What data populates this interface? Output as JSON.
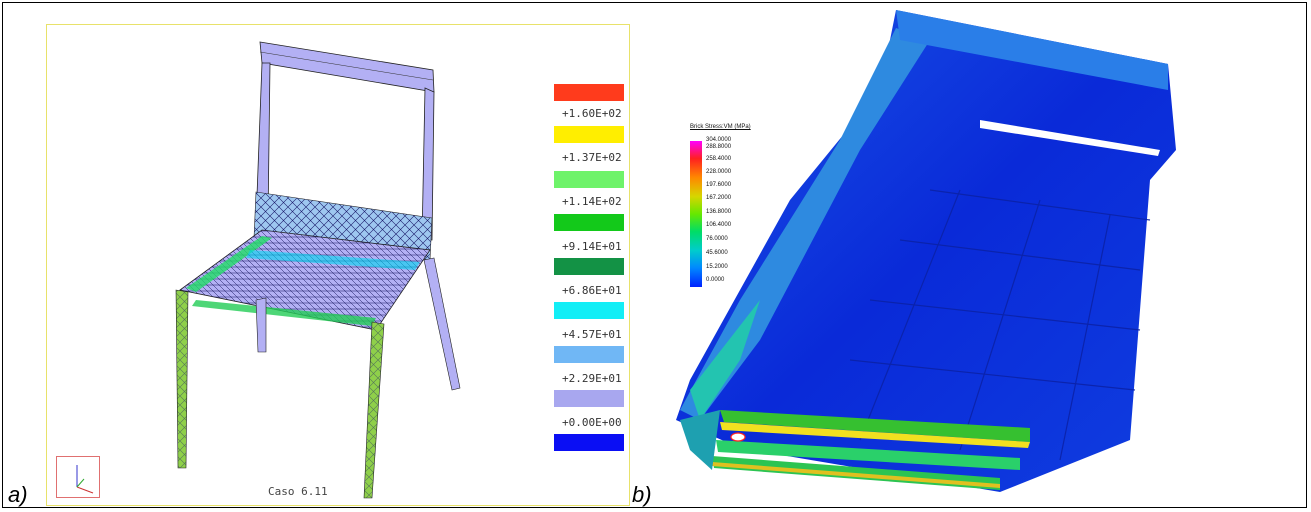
{
  "labels": {
    "a": "a)",
    "b": "b)"
  },
  "panel_a": {
    "caption": "Caso 6.11",
    "legend": [
      {
        "color": "#ff3b1c",
        "value": "+1.60E+02"
      },
      {
        "color": "#ffee00",
        "value": "+1.37E+02"
      },
      {
        "color": "#6ef36a",
        "value": "+1.14E+02"
      },
      {
        "color": "#13c91a",
        "value": "+9.14E+01"
      },
      {
        "color": "#139245",
        "value": "+6.86E+01"
      },
      {
        "color": "#12eef6",
        "value": "+4.57E+01"
      },
      {
        "color": "#70b7f5",
        "value": "+2.29E+01"
      },
      {
        "color": "#a8a7ef",
        "value": "+0.00E+00"
      },
      {
        "color": "#0a0ef4",
        "value": ""
      }
    ]
  },
  "panel_b": {
    "legend_title": "Brick Stress:VM (MPa)",
    "ticks": [
      "304.0000",
      "288.8000",
      "258.4000",
      "228.0000",
      "197.6000",
      "167.2000",
      "136.8000",
      "106.4000",
      "76.0000",
      "45.6000",
      "15.2000",
      "0.0000"
    ],
    "gradient": [
      "#ff00ff",
      "#ff2020",
      "#ff8800",
      "#d6d600",
      "#66e800",
      "#00dd66",
      "#00cccc",
      "#0088ff",
      "#0022ff"
    ]
  }
}
